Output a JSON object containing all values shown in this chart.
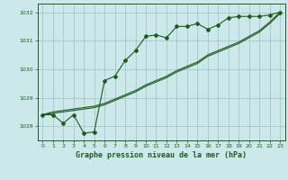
{
  "title": "Graphe pression niveau de la mer (hPa)",
  "background_color": "#cce8ea",
  "grid_color": "#aacccc",
  "line_color": "#1e5c1e",
  "x_values": [
    0,
    1,
    2,
    3,
    4,
    5,
    6,
    7,
    8,
    9,
    10,
    11,
    12,
    13,
    14,
    15,
    16,
    17,
    18,
    19,
    20,
    21,
    22,
    23
  ],
  "series1": [
    1028.4,
    1028.4,
    1028.1,
    1028.4,
    1027.75,
    1027.8,
    1029.6,
    1029.75,
    1030.3,
    1030.65,
    1031.15,
    1031.2,
    1031.1,
    1031.5,
    1031.5,
    1031.6,
    1031.4,
    1031.55,
    1031.8,
    1031.85,
    1031.85,
    1031.85,
    1031.9,
    1032.0
  ],
  "series2": [
    1028.4,
    1028.45,
    1028.5,
    1028.55,
    1028.6,
    1028.65,
    1028.75,
    1028.9,
    1029.05,
    1029.2,
    1029.4,
    1029.55,
    1029.7,
    1029.9,
    1030.05,
    1030.2,
    1030.45,
    1030.6,
    1030.75,
    1030.9,
    1031.1,
    1031.3,
    1031.6,
    1031.95
  ],
  "series3": [
    1028.4,
    1028.5,
    1028.55,
    1028.6,
    1028.65,
    1028.7,
    1028.8,
    1028.95,
    1029.1,
    1029.25,
    1029.45,
    1029.6,
    1029.75,
    1029.95,
    1030.1,
    1030.25,
    1030.5,
    1030.65,
    1030.8,
    1030.95,
    1031.15,
    1031.35,
    1031.65,
    1032.0
  ],
  "ylim": [
    1027.5,
    1032.3
  ],
  "yticks": [
    1028,
    1029,
    1030,
    1031,
    1032
  ],
  "xlim": [
    -0.5,
    23.5
  ],
  "xticks": [
    0,
    1,
    2,
    3,
    4,
    5,
    6,
    7,
    8,
    9,
    10,
    11,
    12,
    13,
    14,
    15,
    16,
    17,
    18,
    19,
    20,
    21,
    22,
    23
  ]
}
